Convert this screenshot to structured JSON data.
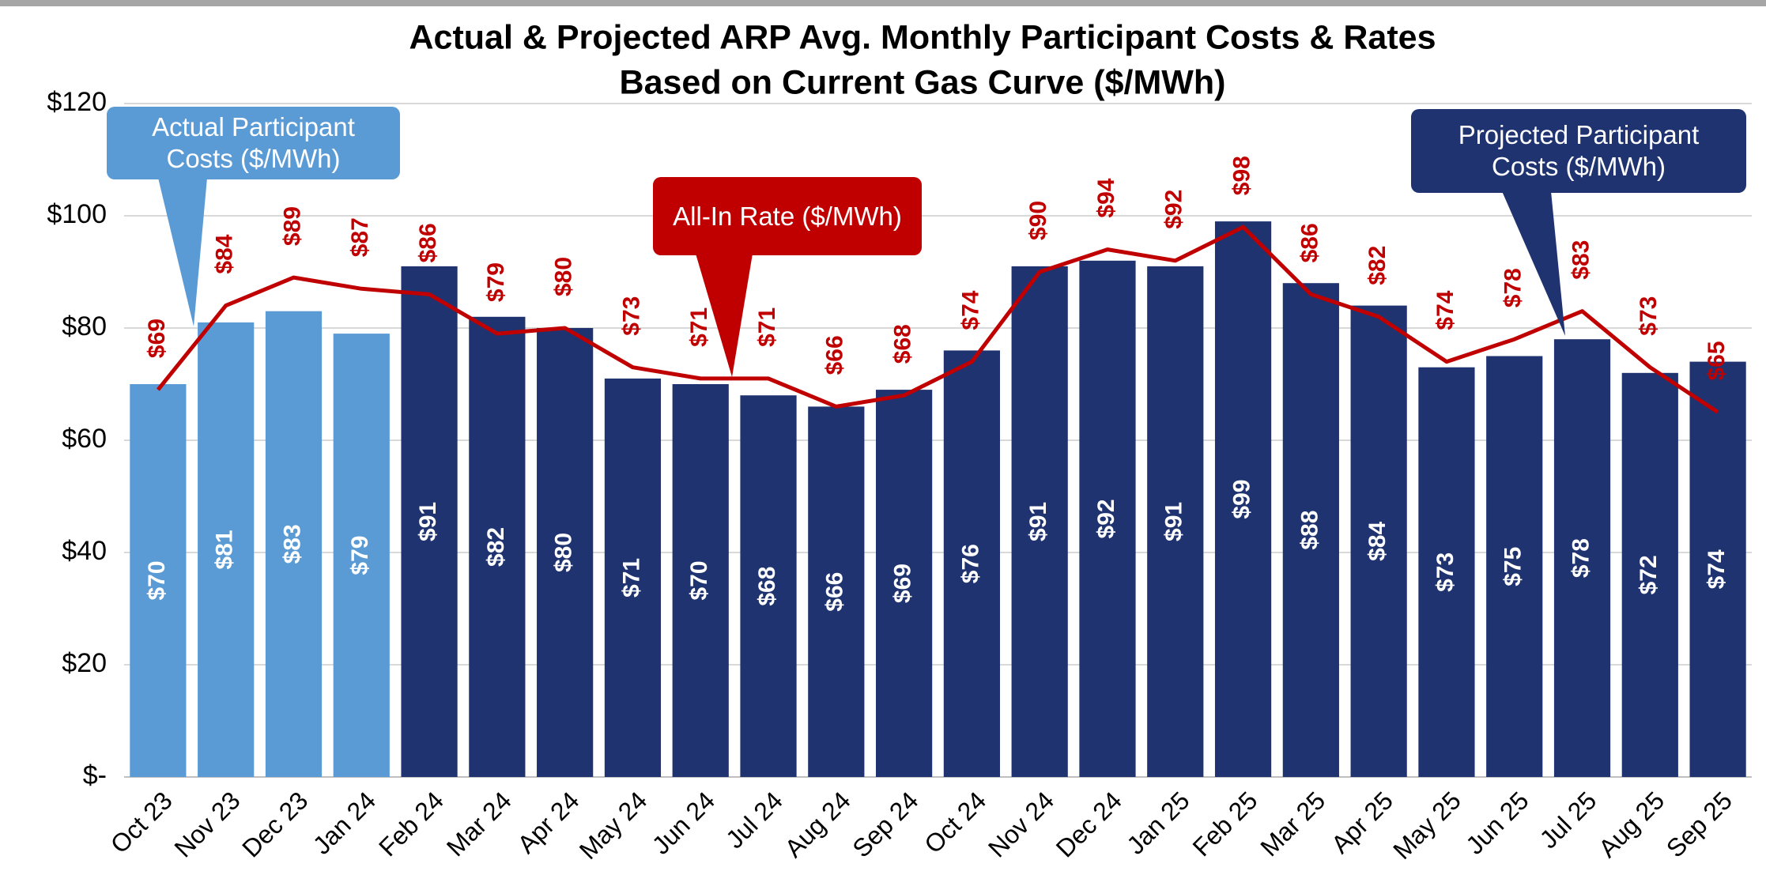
{
  "chart_data": {
    "type": "bar_line",
    "title": [
      "Actual & Projected ARP Avg. Monthly Participant Costs & Rates",
      "Based on Current Gas Curve ($/MWh)"
    ],
    "categories": [
      "Oct 23",
      "Nov 23",
      "Dec 23",
      "Jan 24",
      "Feb 24",
      "Mar 24",
      "Apr 24",
      "May 24",
      "Jun 24",
      "Jul 24",
      "Aug 24",
      "Sep 24",
      "Oct 24",
      "Nov 24",
      "Dec 24",
      "Jan 25",
      "Feb 25",
      "Mar 25",
      "Apr 25",
      "May 25",
      "Jun 25",
      "Jul 25",
      "Aug 25",
      "Sep 25"
    ],
    "series": [
      {
        "name": "Actual Participant Costs ($/MWh)",
        "type": "bar",
        "color": "#5b9bd5",
        "values": [
          70,
          81,
          83,
          79,
          null,
          null,
          null,
          null,
          null,
          null,
          null,
          null,
          null,
          null,
          null,
          null,
          null,
          null,
          null,
          null,
          null,
          null,
          null,
          null
        ],
        "value_labels": [
          "$70",
          "$81",
          "$83",
          "$79",
          null,
          null,
          null,
          null,
          null,
          null,
          null,
          null,
          null,
          null,
          null,
          null,
          null,
          null,
          null,
          null,
          null,
          null,
          null,
          null
        ]
      },
      {
        "name": "Projected Participant Costs ($/MWh)",
        "type": "bar",
        "color": "#1f3370",
        "values": [
          null,
          null,
          null,
          null,
          91,
          82,
          80,
          71,
          70,
          68,
          66,
          69,
          76,
          91,
          92,
          91,
          99,
          88,
          84,
          73,
          75,
          78,
          72,
          74
        ],
        "value_labels": [
          null,
          null,
          null,
          null,
          "$91",
          "$82",
          "$80",
          "$71",
          "$70",
          "$68",
          "$66",
          "$69",
          "$76",
          "$91",
          "$92",
          "$91",
          "$99",
          "$88",
          "$84",
          "$73",
          "$75",
          "$78",
          "$72",
          "$74"
        ]
      },
      {
        "name": "All-In Rate ($/MWh)",
        "type": "line",
        "color": "#c00000",
        "values": [
          69,
          84,
          89,
          87,
          86,
          79,
          80,
          73,
          71,
          71,
          66,
          68,
          74,
          90,
          94,
          92,
          98,
          86,
          82,
          74,
          78,
          83,
          73,
          65
        ],
        "value_labels": [
          "$69",
          "$84",
          "$89",
          "$87",
          "$86",
          "$79",
          "$80",
          "$73",
          "$71",
          "$71",
          "$66",
          "$68",
          "$74",
          "$90",
          "$94",
          "$92",
          "$98",
          "$86",
          "$82",
          "$74",
          "$78",
          "$83",
          "$73",
          "$65"
        ]
      }
    ],
    "ylim": [
      0,
      120
    ],
    "yticks": [
      {
        "value": 0,
        "label": "$-"
      },
      {
        "value": 20,
        "label": "$20"
      },
      {
        "value": 40,
        "label": "$40"
      },
      {
        "value": 60,
        "label": "$60"
      },
      {
        "value": 80,
        "label": "$80"
      },
      {
        "value": 100,
        "label": "$100"
      },
      {
        "value": 120,
        "label": "$120"
      }
    ],
    "grid": true
  }
}
